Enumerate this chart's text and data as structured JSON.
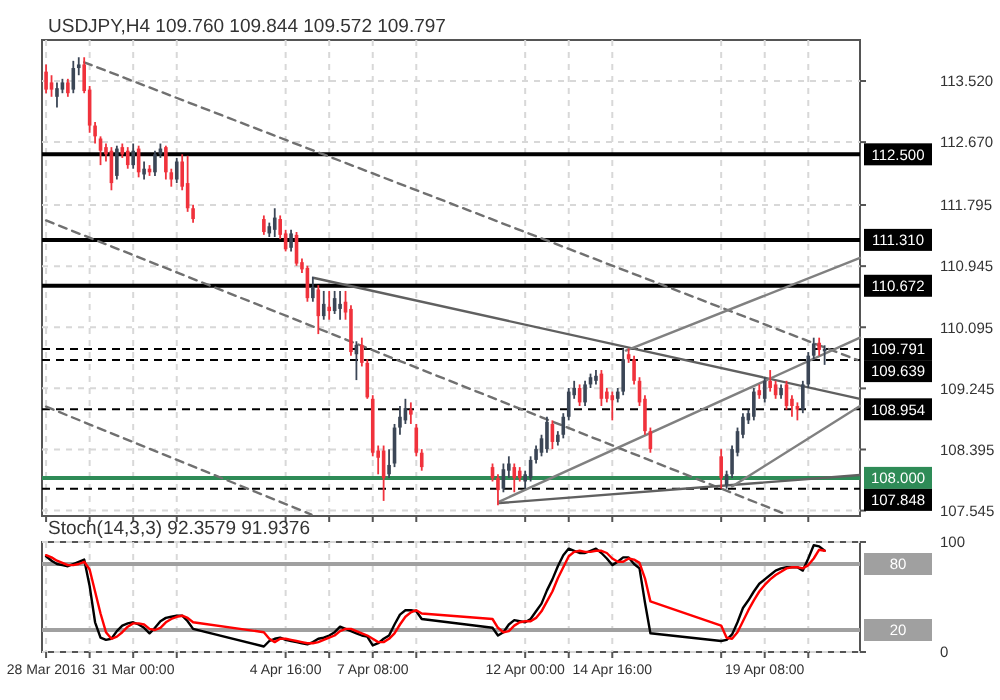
{
  "chart_data": [
    {
      "type": "candlestick",
      "title": "USDJPY,H4  109.760 109.844 109.572 109.797",
      "x": [
        "2016-03-28T08:00",
        "2016-03-28T12:00",
        "2016-03-28T16:00",
        "2016-03-28T20:00",
        "2016-03-29T00:00",
        "2016-03-29T04:00",
        "2016-03-29T08:00",
        "2016-03-29T12:00",
        "2016-03-29T16:00",
        "2016-03-29T20:00",
        "2016-03-30T00:00",
        "2016-03-30T04:00",
        "2016-03-30T08:00",
        "2016-03-30T12:00",
        "2016-03-30T16:00",
        "2016-03-30T20:00",
        "2016-03-31T00:00",
        "2016-03-31T04:00",
        "2016-03-31T08:00",
        "2016-03-31T12:00",
        "2016-03-31T16:00",
        "2016-03-31T20:00",
        "2016-04-01T00:00",
        "2016-04-01T04:00",
        "2016-04-01T08:00",
        "2016-04-01T12:00",
        "2016-04-01T16:00",
        "2016-04-01T20:00",
        "2016-04-04T00:00",
        "2016-04-04T04:00",
        "2016-04-04T08:00",
        "2016-04-04T12:00",
        "2016-04-04T16:00",
        "2016-04-04T20:00",
        "2016-04-05T00:00",
        "2016-04-05T04:00",
        "2016-04-05T08:00",
        "2016-04-05T12:00",
        "2016-04-05T16:00",
        "2016-04-05T20:00",
        "2016-04-06T00:00",
        "2016-04-06T04:00",
        "2016-04-06T08:00",
        "2016-04-06T12:00",
        "2016-04-06T16:00",
        "2016-04-06T20:00",
        "2016-04-07T00:00",
        "2016-04-07T04:00",
        "2016-04-07T08:00",
        "2016-04-07T12:00",
        "2016-04-07T16:00",
        "2016-04-07T20:00",
        "2016-04-08T00:00",
        "2016-04-08T04:00",
        "2016-04-08T08:00",
        "2016-04-08T12:00",
        "2016-04-08T16:00",
        "2016-04-08T20:00",
        "2016-04-11T00:00",
        "2016-04-11T04:00",
        "2016-04-11T08:00",
        "2016-04-11T12:00",
        "2016-04-11T16:00",
        "2016-04-11T20:00",
        "2016-04-12T00:00",
        "2016-04-12T04:00",
        "2016-04-12T08:00",
        "2016-04-12T12:00",
        "2016-04-12T16:00",
        "2016-04-12T20:00",
        "2016-04-13T00:00",
        "2016-04-13T04:00",
        "2016-04-13T08:00",
        "2016-04-13T12:00",
        "2016-04-13T16:00",
        "2016-04-13T20:00",
        "2016-04-14T00:00",
        "2016-04-14T04:00",
        "2016-04-14T08:00",
        "2016-04-14T12:00",
        "2016-04-14T16:00",
        "2016-04-14T20:00",
        "2016-04-15T00:00",
        "2016-04-15T04:00",
        "2016-04-15T08:00",
        "2016-04-15T12:00",
        "2016-04-15T16:00",
        "2016-04-15T20:00",
        "2016-04-18T00:00",
        "2016-04-18T04:00",
        "2016-04-18T08:00",
        "2016-04-18T12:00",
        "2016-04-18T16:00",
        "2016-04-18T20:00",
        "2016-04-19T00:00",
        "2016-04-19T04:00",
        "2016-04-19T08:00",
        "2016-04-19T12:00",
        "2016-04-19T16:00",
        "2016-04-19T20:00",
        "2016-04-20T00:00",
        "2016-04-20T04:00",
        "2016-04-20T08:00",
        "2016-04-20T12:00",
        "2016-04-20T16:00",
        "2016-04-20T20:00",
        "2016-04-21T00:00",
        "2016-04-21T04:00"
      ],
      "ohlc": [
        [
          113.65,
          113.75,
          113.35,
          113.4
        ],
        [
          113.5,
          113.6,
          113.3,
          113.4
        ],
        [
          113.3,
          113.5,
          113.15,
          113.42
        ],
        [
          113.4,
          113.55,
          113.35,
          113.5
        ],
        [
          113.5,
          113.55,
          113.3,
          113.35
        ],
        [
          113.4,
          113.8,
          113.35,
          113.7
        ],
        [
          113.7,
          113.85,
          113.6,
          113.75
        ],
        [
          113.75,
          113.85,
          113.35,
          113.38
        ],
        [
          113.4,
          113.45,
          112.8,
          112.9
        ],
        [
          112.9,
          112.95,
          112.65,
          112.75
        ],
        [
          112.72,
          112.75,
          112.35,
          112.55
        ],
        [
          112.6,
          112.65,
          112.4,
          112.5
        ],
        [
          112.55,
          112.6,
          112.0,
          112.1
        ],
        [
          112.2,
          112.62,
          112.15,
          112.58
        ],
        [
          112.6,
          112.65,
          112.45,
          112.5
        ],
        [
          112.55,
          112.6,
          112.3,
          112.35
        ],
        [
          112.35,
          112.65,
          112.3,
          112.55
        ],
        [
          112.58,
          112.62,
          112.18,
          112.25
        ],
        [
          112.22,
          112.4,
          112.15,
          112.3
        ],
        [
          112.3,
          112.35,
          112.2,
          112.25
        ],
        [
          112.25,
          112.55,
          112.2,
          112.5
        ],
        [
          112.5,
          112.65,
          112.45,
          112.58
        ],
        [
          112.6,
          112.62,
          112.15,
          112.25
        ],
        [
          112.25,
          112.3,
          112.05,
          112.15
        ],
        [
          112.15,
          112.45,
          112.1,
          112.4
        ],
        [
          112.4,
          112.5,
          112.0,
          112.05
        ],
        [
          112.1,
          112.48,
          111.7,
          111.75
        ],
        [
          111.75,
          111.8,
          111.55,
          111.6
        ],
        [
          111.6,
          111.65,
          111.38,
          111.42
        ],
        [
          111.4,
          111.55,
          111.35,
          111.5
        ],
        [
          111.45,
          111.75,
          111.35,
          111.62
        ],
        [
          111.6,
          111.65,
          111.32,
          111.38
        ],
        [
          111.4,
          111.45,
          111.15,
          111.18
        ],
        [
          111.2,
          111.45,
          111.15,
          111.4
        ],
        [
          111.38,
          111.42,
          110.95,
          110.98
        ],
        [
          111.0,
          111.05,
          110.85,
          110.9
        ],
        [
          110.92,
          110.95,
          110.45,
          110.5
        ],
        [
          110.5,
          110.8,
          110.45,
          110.65
        ],
        [
          110.62,
          110.68,
          110.0,
          110.25
        ],
        [
          110.25,
          110.6,
          110.2,
          110.42
        ],
        [
          110.38,
          110.6,
          110.2,
          110.32
        ],
        [
          110.32,
          110.6,
          110.28,
          110.5
        ],
        [
          110.35,
          110.6,
          110.2,
          110.42
        ],
        [
          110.45,
          110.6,
          110.2,
          110.3
        ],
        [
          110.35,
          110.4,
          109.7,
          109.75
        ],
        [
          109.72,
          109.9,
          109.36,
          109.85
        ],
        [
          109.85,
          109.95,
          109.55,
          109.6
        ],
        [
          109.6,
          109.65,
          109.1,
          109.12
        ],
        [
          109.1,
          109.15,
          108.3,
          108.35
        ],
        [
          108.38,
          108.45,
          108.05,
          108.28
        ],
        [
          108.38,
          108.45,
          107.68,
          108.0
        ],
        [
          108.05,
          108.4,
          108.0,
          108.18
        ],
        [
          108.2,
          108.75,
          108.15,
          108.7
        ],
        [
          108.7,
          109.0,
          108.6,
          108.85
        ],
        [
          108.8,
          109.1,
          108.75,
          108.97
        ],
        [
          108.95,
          109.05,
          108.75,
          108.88
        ],
        [
          108.7,
          108.75,
          108.3,
          108.35
        ],
        [
          108.35,
          108.4,
          108.1,
          108.15
        ],
        [
          108.15,
          108.2,
          107.95,
          108.0
        ],
        [
          108.0,
          108.05,
          107.62,
          107.83
        ],
        [
          107.85,
          108.2,
          107.8,
          108.12
        ],
        [
          108.1,
          108.3,
          108.0,
          108.2
        ],
        [
          108.15,
          108.2,
          107.8,
          108.0
        ],
        [
          108.1,
          108.15,
          107.95,
          108.0
        ],
        [
          107.95,
          108.1,
          107.85,
          108.05
        ],
        [
          108.0,
          108.3,
          107.95,
          108.25
        ],
        [
          108.25,
          108.45,
          108.2,
          108.4
        ],
        [
          108.35,
          108.6,
          108.3,
          108.55
        ],
        [
          108.4,
          108.85,
          108.35,
          108.78
        ],
        [
          108.75,
          108.8,
          108.4,
          108.5
        ],
        [
          108.5,
          108.65,
          108.45,
          108.6
        ],
        [
          108.6,
          108.9,
          108.55,
          108.85
        ],
        [
          108.85,
          109.25,
          108.8,
          109.2
        ],
        [
          109.15,
          109.35,
          109.1,
          109.25
        ],
        [
          109.25,
          109.3,
          109.0,
          109.05
        ],
        [
          109.05,
          109.35,
          109.0,
          109.3
        ],
        [
          109.3,
          109.45,
          109.25,
          109.4
        ],
        [
          109.35,
          109.5,
          109.3,
          109.42
        ],
        [
          109.45,
          109.5,
          109.0,
          109.1
        ],
        [
          109.2,
          109.25,
          109.05,
          109.1
        ],
        [
          109.15,
          109.2,
          108.8,
          109.08
        ],
        [
          109.1,
          109.25,
          109.05,
          109.2
        ],
        [
          109.2,
          109.8,
          109.15,
          109.65
        ],
        [
          109.72,
          109.8,
          109.6,
          109.65
        ],
        [
          109.65,
          109.7,
          109.3,
          109.35
        ],
        [
          109.35,
          109.4,
          109.0,
          109.05
        ],
        [
          109.1,
          109.15,
          108.6,
          108.65
        ],
        [
          108.65,
          108.7,
          108.35,
          108.4
        ],
        [
          108.3,
          108.4,
          107.85,
          108.0
        ],
        [
          107.9,
          108.1,
          107.85,
          108.05
        ],
        [
          108.05,
          108.45,
          108.0,
          108.4
        ],
        [
          108.35,
          108.7,
          108.3,
          108.65
        ],
        [
          108.6,
          108.9,
          108.55,
          108.85
        ],
        [
          108.8,
          108.95,
          108.75,
          108.9
        ],
        [
          108.85,
          109.25,
          108.8,
          109.2
        ],
        [
          109.22,
          109.3,
          109.1,
          109.15
        ],
        [
          109.1,
          109.4,
          109.05,
          109.35
        ],
        [
          109.35,
          109.5,
          109.2,
          109.25
        ],
        [
          109.3,
          109.35,
          109.1,
          109.15
        ],
        [
          109.15,
          109.3,
          109.1,
          109.25
        ],
        [
          109.3,
          109.35,
          108.95,
          109.0
        ],
        [
          109.1,
          109.15,
          108.85,
          109.0
        ],
        [
          109.0,
          109.05,
          108.8,
          108.95
        ],
        [
          108.95,
          109.35,
          108.9,
          109.3
        ],
        [
          109.3,
          109.75,
          109.25,
          109.7
        ],
        [
          109.7,
          109.95,
          109.65,
          109.87
        ],
        [
          109.88,
          109.95,
          109.7,
          109.78
        ],
        [
          109.76,
          109.844,
          109.572,
          109.797
        ]
      ],
      "colors": [
        "#f0323c",
        "#f0323c",
        "#3b4656",
        "#3b4656",
        "#f0323c",
        "#3b4656",
        "#3b4656",
        "#f0323c",
        "#f0323c",
        "#f0323c",
        "#f0323c",
        "#f0323c",
        "#f0323c",
        "#3b4656",
        "#f0323c",
        "#f0323c",
        "#3b4656",
        "#f0323c",
        "#3b4656",
        "#f0323c",
        "#3b4656",
        "#3b4656",
        "#f0323c",
        "#f0323c",
        "#3b4656",
        "#f0323c",
        "#f0323c",
        "#f0323c",
        "#f0323c",
        "#3b4656",
        "#3b4656",
        "#f0323c",
        "#f0323c",
        "#3b4656",
        "#f0323c",
        "#f0323c",
        "#f0323c",
        "#3b4656",
        "#f0323c",
        "#3b4656",
        "#f0323c",
        "#3b4656",
        "#3b4656",
        "#f0323c",
        "#f0323c",
        "#3b4656",
        "#f0323c",
        "#f0323c",
        "#f0323c",
        "#f0323c",
        "#f0323c",
        "#3b4656",
        "#3b4656",
        "#3b4656",
        "#3b4656",
        "#f0323c",
        "#f0323c",
        "#f0323c",
        "#f0323c",
        "#f0323c",
        "#3b4656",
        "#3b4656",
        "#f0323c",
        "#f0323c",
        "#3b4656",
        "#3b4656",
        "#3b4656",
        "#3b4656",
        "#3b4656",
        "#f0323c",
        "#3b4656",
        "#3b4656",
        "#3b4656",
        "#3b4656",
        "#f0323c",
        "#3b4656",
        "#3b4656",
        "#3b4656",
        "#f0323c",
        "#f0323c",
        "#f0323c",
        "#3b4656",
        "#3b4656",
        "#f0323c",
        "#f0323c",
        "#f0323c",
        "#f0323c",
        "#f0323c",
        "#f0323c",
        "#3b4656",
        "#3b4656",
        "#3b4656",
        "#3b4656",
        "#3b4656",
        "#3b4656",
        "#f0323c",
        "#3b4656",
        "#f0323c",
        "#f0323c",
        "#3b4656",
        "#f0323c",
        "#f0323c",
        "#f0323c",
        "#3b4656",
        "#3b4656",
        "#3b4656",
        "#f0323c",
        "#3b4656"
      ],
      "series": [
        {
          "type": "line",
          "x": [
            "2016-03-29T12:00",
            "2016-04-22T04:00"
          ],
          "values": [
            113.78,
            109.64
          ],
          "color": "#707070",
          "line_style": "dashed"
        },
        {
          "type": "line",
          "x": [
            "2016-03-28T08:00",
            "2016-04-20T00:00"
          ],
          "values": [
            111.58,
            107.49
          ],
          "color": "#707070",
          "line_style": "dashed"
        },
        {
          "type": "line",
          "x": [
            "2016-03-28T08:00",
            "2016-04-05T11:00"
          ],
          "values": [
            108.99,
            107.49
          ],
          "color": "#707070",
          "line_style": "dashed"
        },
        {
          "type": "line",
          "x": [
            "2016-04-05T13:00",
            "2016-04-22T06:00"
          ],
          "values": [
            110.78,
            109.1
          ],
          "color": "#606060",
          "line_style": "solid"
        },
        {
          "type": "line",
          "x": [
            "2016-04-11T05:00",
            "2016-04-22T06:00"
          ],
          "values": [
            107.65,
            108.04
          ],
          "color": "#606060",
          "line_style": "solid"
        },
        {
          "type": "line",
          "x": [
            "2016-04-15T02:00",
            "2016-04-22T06:00"
          ],
          "values": [
            109.77,
            111.06
          ],
          "color": "#808080",
          "line_style": "solid"
        },
        {
          "type": "line",
          "x": [
            "2016-04-11T05:00",
            "2016-04-22T06:00"
          ],
          "values": [
            107.67,
            109.95
          ],
          "color": "#808080",
          "line_style": "solid"
        },
        {
          "type": "line",
          "x": [
            "2016-04-18T08:00",
            "2016-04-22T06:00"
          ],
          "values": [
            107.88,
            109.0
          ],
          "color": "#808080",
          "line_style": "solid"
        }
      ],
      "xlim": [
        "2016-03-28T05:00",
        "2016-04-22T06:00"
      ],
      "xticks": [
        {
          "value": "2016-03-28T08:00",
          "label": null
        },
        {
          "value": "2016-03-29T16:00",
          "label": null
        },
        {
          "value": "2016-03-31T00:00",
          "label": null
        },
        {
          "value": "2016-04-01T08:00",
          "label": null
        },
        {
          "value": "2016-04-04T16:00",
          "label": null
        },
        {
          "value": "2016-04-06T00:00",
          "label": null
        },
        {
          "value": "2016-04-07T08:00",
          "label": null
        },
        {
          "value": "2016-04-08T16:00",
          "label": null
        },
        {
          "value": "2016-04-12T00:00",
          "label": null
        },
        {
          "value": "2016-04-13T08:00",
          "label": null
        },
        {
          "value": "2016-04-14T16:00",
          "label": null
        },
        {
          "value": "2016-04-18T00:00",
          "label": null
        },
        {
          "value": "2016-04-19T08:00",
          "label": null
        },
        {
          "value": "2016-04-20T16:00",
          "label": null
        }
      ],
      "ylim": [
        107.47,
        114.09
      ],
      "yticks": [
        {
          "value": 113.52,
          "label": "113.520"
        },
        {
          "value": 112.67,
          "label": "112.670"
        },
        {
          "value": 111.795,
          "label": "111.795"
        },
        {
          "value": 110.945,
          "label": "110.945"
        },
        {
          "value": 110.095,
          "label": "110.095"
        },
        {
          "value": 109.245,
          "label": "109.245"
        },
        {
          "value": 108.395,
          "label": "108.395"
        },
        {
          "value": 107.545,
          "label": "107.545"
        }
      ],
      "grid": true,
      "tick_labels": "y",
      "ref_lines": [
        {
          "axis": "y",
          "value": 112.5,
          "label": "112.500",
          "color": "#000000",
          "line_style": "solid"
        },
        {
          "axis": "y",
          "value": 111.31,
          "label": "111.310",
          "color": "#000000",
          "line_style": "solid"
        },
        {
          "axis": "y",
          "value": 110.672,
          "label": "110.672",
          "color": "#000000",
          "line_style": "solid"
        },
        {
          "axis": "y",
          "value": 109.791,
          "label": "109.791",
          "color": "#000000",
          "line_style": "dashed"
        },
        {
          "axis": "y",
          "value": 109.639,
          "label": "109.639",
          "color": "#000000",
          "line_style": "dashed"
        },
        {
          "axis": "y",
          "value": 108.954,
          "label": "108.954",
          "color": "#000000",
          "line_style": "dashed"
        },
        {
          "axis": "y",
          "value": 108.0,
          "label": "108.000",
          "color": "#2e8b57",
          "line_style": "solid"
        },
        {
          "axis": "y",
          "value": 107.848,
          "label": "107.848",
          "color": "#000000",
          "line_style": "dashed"
        }
      ]
    },
    {
      "type": "line",
      "title": "Stoch(14,3,3) 92.3579 91.9376",
      "x": [
        "2016-03-28T08:00",
        "2016-03-28T12:00",
        "2016-03-28T16:00",
        "2016-03-28T20:00",
        "2016-03-29T00:00",
        "2016-03-29T04:00",
        "2016-03-29T08:00",
        "2016-03-29T12:00",
        "2016-03-29T16:00",
        "2016-03-29T20:00",
        "2016-03-30T00:00",
        "2016-03-30T04:00",
        "2016-03-30T08:00",
        "2016-03-30T12:00",
        "2016-03-30T16:00",
        "2016-03-30T20:00",
        "2016-03-31T00:00",
        "2016-03-31T04:00",
        "2016-03-31T08:00",
        "2016-03-31T12:00",
        "2016-03-31T16:00",
        "2016-03-31T20:00",
        "2016-04-01T00:00",
        "2016-04-01T04:00",
        "2016-04-01T08:00",
        "2016-04-01T12:00",
        "2016-04-01T16:00",
        "2016-04-01T20:00",
        "2016-04-04T00:00",
        "2016-04-04T04:00",
        "2016-04-04T08:00",
        "2016-04-04T12:00",
        "2016-04-04T16:00",
        "2016-04-04T20:00",
        "2016-04-05T00:00",
        "2016-04-05T04:00",
        "2016-04-05T08:00",
        "2016-04-05T12:00",
        "2016-04-05T16:00",
        "2016-04-05T20:00",
        "2016-04-06T00:00",
        "2016-04-06T04:00",
        "2016-04-06T08:00",
        "2016-04-06T12:00",
        "2016-04-06T16:00",
        "2016-04-06T20:00",
        "2016-04-07T00:00",
        "2016-04-07T04:00",
        "2016-04-07T08:00",
        "2016-04-07T12:00",
        "2016-04-07T16:00",
        "2016-04-07T20:00",
        "2016-04-08T00:00",
        "2016-04-08T04:00",
        "2016-04-08T08:00",
        "2016-04-08T12:00",
        "2016-04-08T16:00",
        "2016-04-08T20:00",
        "2016-04-11T00:00",
        "2016-04-11T04:00",
        "2016-04-11T08:00",
        "2016-04-11T12:00",
        "2016-04-11T16:00",
        "2016-04-11T20:00",
        "2016-04-12T00:00",
        "2016-04-12T04:00",
        "2016-04-12T08:00",
        "2016-04-12T12:00",
        "2016-04-12T16:00",
        "2016-04-12T20:00",
        "2016-04-13T00:00",
        "2016-04-13T04:00",
        "2016-04-13T08:00",
        "2016-04-13T12:00",
        "2016-04-13T16:00",
        "2016-04-13T20:00",
        "2016-04-14T00:00",
        "2016-04-14T04:00",
        "2016-04-14T08:00",
        "2016-04-14T12:00",
        "2016-04-14T16:00",
        "2016-04-14T20:00",
        "2016-04-15T00:00",
        "2016-04-15T04:00",
        "2016-04-15T08:00",
        "2016-04-15T12:00",
        "2016-04-15T16:00",
        "2016-04-15T20:00",
        "2016-04-18T00:00",
        "2016-04-18T04:00",
        "2016-04-18T08:00",
        "2016-04-18T12:00",
        "2016-04-18T16:00",
        "2016-04-18T20:00",
        "2016-04-19T00:00",
        "2016-04-19T04:00",
        "2016-04-19T08:00",
        "2016-04-19T12:00",
        "2016-04-19T16:00",
        "2016-04-19T20:00",
        "2016-04-20T00:00",
        "2016-04-20T04:00",
        "2016-04-20T08:00",
        "2016-04-20T12:00",
        "2016-04-20T16:00",
        "2016-04-20T20:00",
        "2016-04-21T00:00",
        "2016-04-21T04:00"
      ],
      "series": [
        {
          "color": "#000000",
          "values": [
            87,
            83,
            80,
            79,
            78,
            80,
            82,
            84,
            60,
            27,
            13,
            11,
            12,
            19,
            24,
            26,
            27,
            25,
            22,
            17,
            22,
            28,
            31,
            32,
            33,
            33,
            28,
            21,
            5,
            10,
            12,
            13,
            11,
            10,
            9,
            8,
            7,
            9,
            12,
            13,
            15,
            18,
            23,
            21,
            19,
            17,
            15,
            14,
            6,
            8,
            12,
            15,
            25,
            34,
            38,
            38,
            37,
            30,
            22,
            15,
            18,
            25,
            29,
            28,
            27,
            30,
            37,
            44,
            56,
            66,
            78,
            88,
            94,
            92,
            90,
            90,
            92,
            94,
            90,
            85,
            79,
            82,
            86,
            86,
            80,
            76,
            45,
            17,
            10,
            11,
            16,
            27,
            40,
            47,
            55,
            62,
            66,
            70,
            74,
            76,
            77,
            77,
            77,
            74,
            85,
            97,
            96,
            92
          ]
        },
        {
          "color": "#ff0000",
          "values": [
            88,
            86,
            83,
            81,
            79,
            79,
            80,
            82,
            75,
            55,
            35,
            18,
            12,
            14,
            18,
            23,
            26,
            26,
            25,
            21,
            20,
            22,
            27,
            30,
            32,
            33,
            31,
            27,
            18,
            12,
            9,
            12,
            12,
            11,
            10,
            9,
            8,
            8,
            9,
            11,
            13,
            15,
            19,
            21,
            21,
            19,
            17,
            15,
            12,
            9,
            9,
            12,
            17,
            25,
            32,
            36,
            38,
            35,
            30,
            22,
            18,
            19,
            24,
            27,
            28,
            28,
            31,
            37,
            46,
            55,
            67,
            77,
            87,
            91,
            92,
            91,
            91,
            92,
            92,
            90,
            85,
            82,
            82,
            85,
            84,
            81,
            67,
            46,
            24,
            13,
            12,
            18,
            28,
            38,
            47,
            55,
            61,
            66,
            70,
            73,
            76,
            77,
            77,
            76,
            79,
            85,
            93,
            92
          ]
        }
      ],
      "xlim": [
        "2016-03-28T05:00",
        "2016-04-22T06:00"
      ],
      "xticks": [
        {
          "value": "2016-03-28T08:00",
          "label": "28 Mar 2016"
        },
        {
          "value": "2016-03-29T16:00",
          "label": null
        },
        {
          "value": "2016-03-31T00:00",
          "label": "31 Mar 00:00"
        },
        {
          "value": "2016-04-01T08:00",
          "label": null
        },
        {
          "value": "2016-04-04T16:00",
          "label": "4 Apr 16:00"
        },
        {
          "value": "2016-04-06T00:00",
          "label": null
        },
        {
          "value": "2016-04-07T08:00",
          "label": "7 Apr 08:00"
        },
        {
          "value": "2016-04-08T16:00",
          "label": null
        },
        {
          "value": "2016-04-12T00:00",
          "label": "12 Apr 00:00"
        },
        {
          "value": "2016-04-13T08:00",
          "label": null
        },
        {
          "value": "2016-04-14T16:00",
          "label": "14 Apr 16:00"
        },
        {
          "value": "2016-04-18T00:00",
          "label": null
        },
        {
          "value": "2016-04-19T08:00",
          "label": "19 Apr 08:00"
        },
        {
          "value": "2016-04-20T16:00",
          "label": null
        }
      ],
      "ylim": [
        0,
        100
      ],
      "yticks": [
        100,
        0
      ],
      "grid": true,
      "ref_lines": [
        {
          "axis": "y",
          "value": 80,
          "label": "80",
          "color": "#a0a0a0"
        },
        {
          "axis": "y",
          "value": 20,
          "label": "20",
          "color": "#a0a0a0"
        }
      ]
    }
  ]
}
